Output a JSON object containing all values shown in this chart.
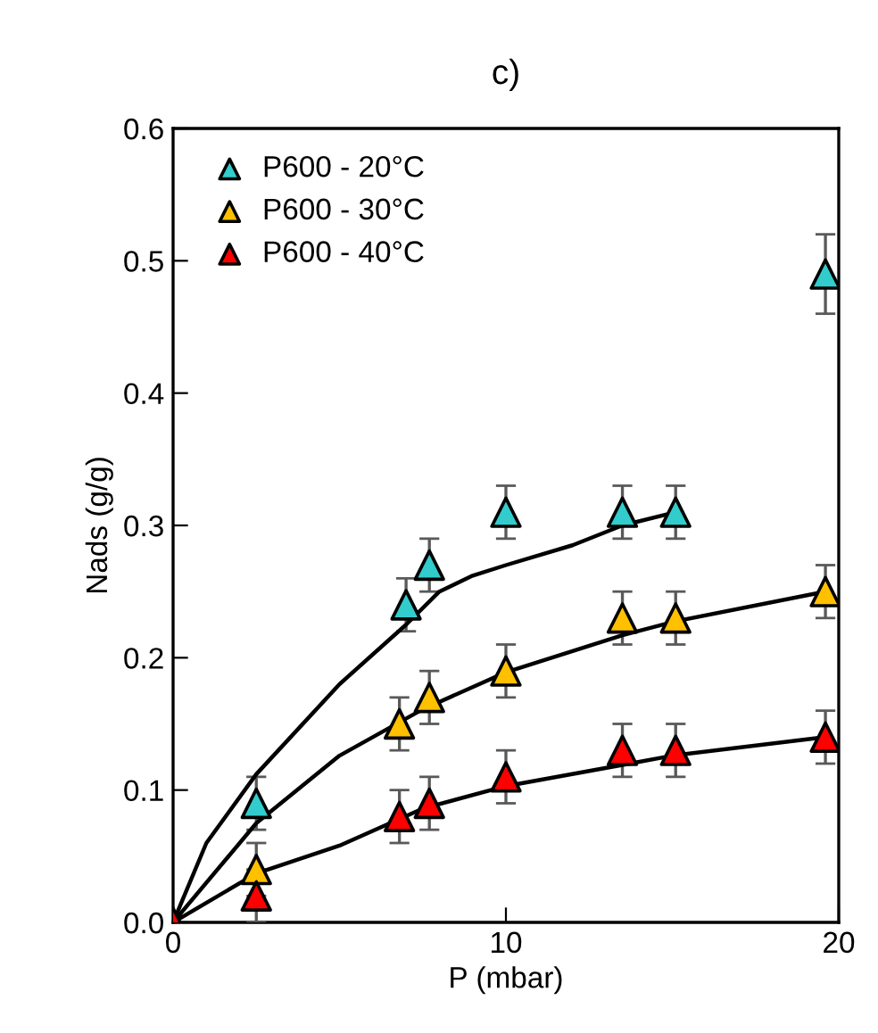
{
  "chart_data": {
    "type": "scatter",
    "title": "c)",
    "xlabel": "P (mbar)",
    "ylabel": "Nads (g/g)",
    "xlim": [
      0,
      20
    ],
    "xticks": [
      0,
      10,
      20
    ],
    "ylim": [
      0,
      0.6
    ],
    "yticks": [
      {
        "value": 0,
        "label": "0.0"
      },
      0.1,
      0.2,
      0.3,
      0.4,
      0.5,
      0.6
    ],
    "legend": "top left",
    "grid": false,
    "series": [
      {
        "name": "P600 - 20°C",
        "marker": "triangle",
        "color": "#33cccc",
        "x": [
          2.5,
          7,
          7.7,
          10,
          13.5,
          15.1,
          19.6
        ],
        "values": [
          0.09,
          0.24,
          0.27,
          0.31,
          0.31,
          0.31,
          0.49
        ],
        "errors": [
          0.02,
          0.02,
          0.02,
          0.02,
          0.02,
          0.02,
          0.03
        ]
      },
      {
        "name": "P600 - 30°C",
        "marker": "triangle",
        "color": "#ffc000",
        "x": [
          2.5,
          6.8,
          7.7,
          10,
          13.5,
          15.1,
          19.6
        ],
        "values": [
          0.04,
          0.15,
          0.17,
          0.19,
          0.23,
          0.23,
          0.25
        ],
        "errors": [
          0.02,
          0.02,
          0.02,
          0.02,
          0.02,
          0.02,
          0.02
        ]
      },
      {
        "name": "P600 - 40°C",
        "marker": "triangle",
        "color": "#ff0000",
        "x": [
          0,
          2.5,
          6.8,
          7.7,
          10,
          13.5,
          15.1,
          19.6
        ],
        "values": [
          0,
          0.02,
          0.08,
          0.09,
          0.11,
          0.13,
          0.13,
          0.14
        ],
        "errors": [
          null,
          0.02,
          0.02,
          0.02,
          0.02,
          0.02,
          0.02,
          0.02
        ]
      },
      {
        "type": "line",
        "color": "#000000",
        "x": [
          0,
          1,
          2.5,
          5,
          7,
          8,
          9,
          10,
          12,
          13.5,
          15.1
        ],
        "values": [
          0,
          0.06,
          0.112,
          0.18,
          0.225,
          0.25,
          0.262,
          0.27,
          0.285,
          0.3,
          0.31
        ]
      },
      {
        "type": "line",
        "color": "#000000",
        "x": [
          0,
          2.5,
          5,
          7.5,
          10,
          13.5,
          15,
          19.6
        ],
        "values": [
          0,
          0.075,
          0.126,
          0.161,
          0.189,
          0.217,
          0.227,
          0.25
        ]
      },
      {
        "type": "line",
        "color": "#000000",
        "x": [
          0,
          2.5,
          5,
          7.5,
          10,
          13.5,
          15,
          19.6
        ],
        "values": [
          0,
          0.037,
          0.058,
          0.086,
          0.103,
          0.119,
          0.126,
          0.14
        ]
      }
    ]
  }
}
